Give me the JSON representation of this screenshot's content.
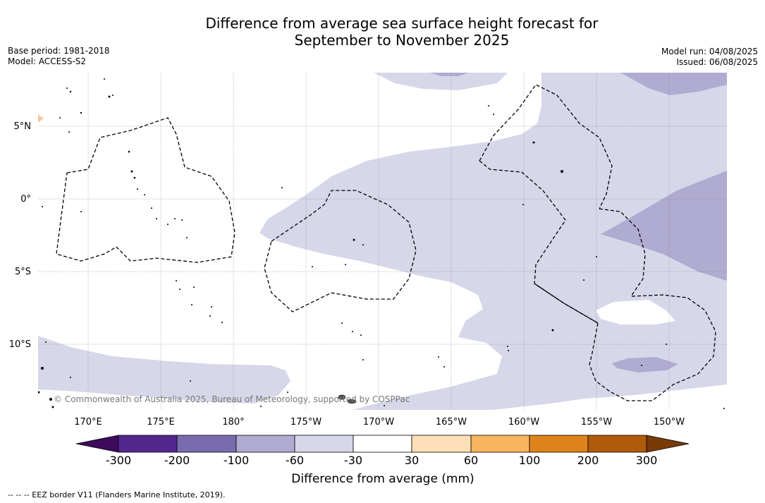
{
  "title": {
    "line1": "Difference from average sea surface height forecast for",
    "line2": "September to November 2025"
  },
  "meta_left": {
    "base_period": "Base period: 1981-2018",
    "model": "Model: ACCESS-S2"
  },
  "meta_right": {
    "model_run": "Model run: 04/08/2025",
    "issued": "Issued: 06/08/2025"
  },
  "map": {
    "lat_labels": [
      "5°N",
      "0°",
      "5°S",
      "10°S"
    ],
    "lon_labels": [
      "170°E",
      "175°E",
      "180°",
      "175°W",
      "170°W",
      "165°W",
      "160°W",
      "155°W",
      "150°W"
    ],
    "copyright": "© Commonwealth of Australia 2025, Bureau of Meteorology, supported by COSPPac",
    "colors": {
      "light_lavender": "#d7d7ea",
      "medium_lavender": "#b0abd1",
      "white": "#ffffff",
      "peach": "#f7c7a2",
      "eez_line": "#000000"
    }
  },
  "colorbar": {
    "title": "Difference from average (mm)",
    "tick_labels": [
      "-300",
      "-200",
      "-100",
      "-60",
      "-30",
      "30",
      "60",
      "100",
      "200",
      "300"
    ],
    "colors": [
      "#3d0b5c",
      "#54278f",
      "#7a6baf",
      "#b0abd1",
      "#d7d7ea",
      "#ffffff",
      "#fde0b8",
      "#f8b45e",
      "#e0821c",
      "#b05a0c",
      "#7a3a06"
    ]
  },
  "footnote": "--  --  -- EEZ border V11 (Flanders Marine Institute, 2019)."
}
